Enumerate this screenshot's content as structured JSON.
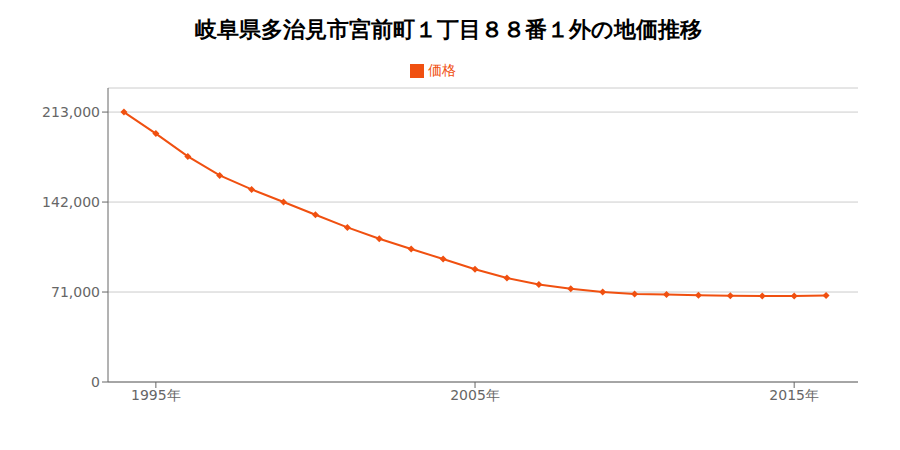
{
  "chart_data": {
    "type": "line",
    "title": "岐阜県多治見市宮前町１丁目８８番１外の地価推移",
    "x": [
      1994,
      1995,
      1996,
      1997,
      1998,
      1999,
      2000,
      2001,
      2002,
      2003,
      2004,
      2005,
      2006,
      2007,
      2008,
      2009,
      2010,
      2011,
      2012,
      2013,
      2014,
      2015,
      2016
    ],
    "series": [
      {
        "name": "価格",
        "color": "#f05010",
        "marker": "diamond",
        "values": [
          213000,
          196000,
          178000,
          163000,
          152000,
          142000,
          132000,
          122000,
          113000,
          105000,
          97000,
          89000,
          82000,
          77000,
          73500,
          71000,
          69500,
          69000,
          68500,
          68000,
          67800,
          67800,
          68200
        ]
      }
    ],
    "xlim": [
      1993.5,
      2017.0
    ],
    "xticks": [
      {
        "value": 1995,
        "label": "1995年"
      },
      {
        "value": 2005,
        "label": "2005年"
      },
      {
        "value": 2015,
        "label": "2015年"
      }
    ],
    "ylim": [
      0,
      232000
    ],
    "yticks": [
      0,
      {
        "value": 71000,
        "label": "71,000"
      },
      {
        "value": 142000,
        "label": "142,000"
      },
      {
        "value": 213000,
        "label": "213,000"
      }
    ],
    "grid": "y",
    "legend": "top"
  }
}
